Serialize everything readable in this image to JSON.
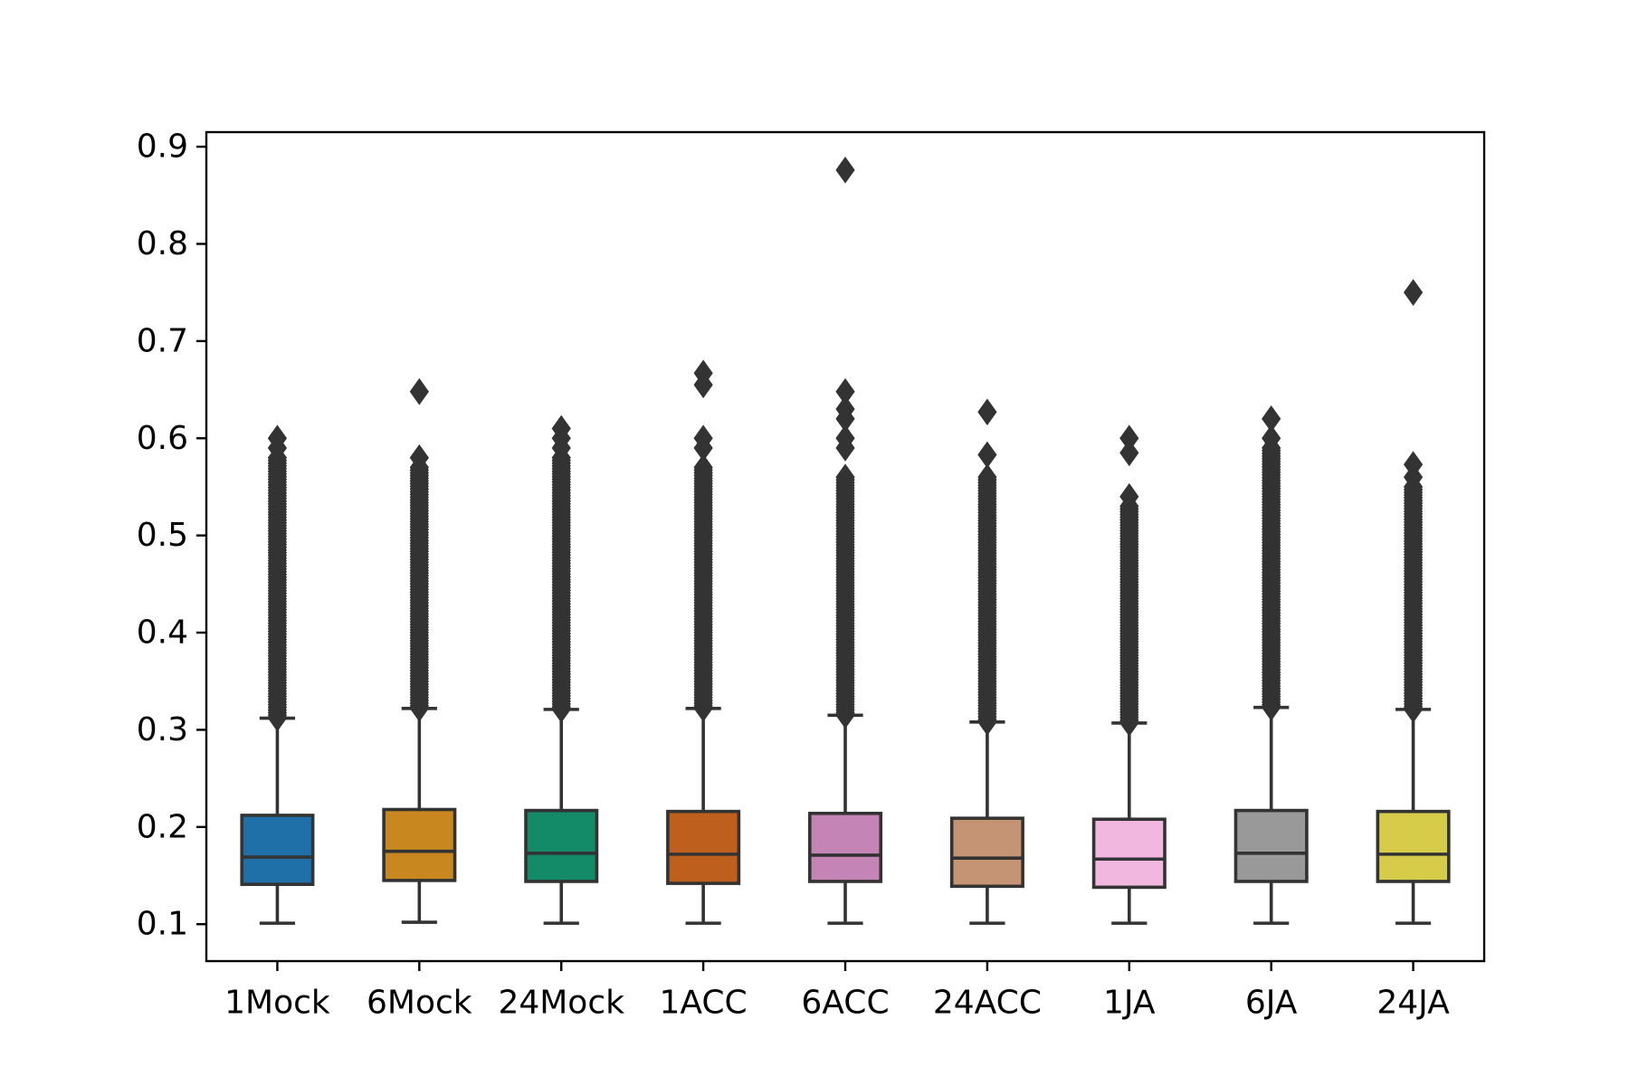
{
  "chart_data": {
    "type": "box",
    "title": "",
    "xlabel": "",
    "ylabel": "",
    "ylim": [
      0.062,
      0.915
    ],
    "yticks": [
      0.1,
      0.2,
      0.3,
      0.4,
      0.5,
      0.6,
      0.7,
      0.8,
      0.9
    ],
    "ytick_labels": [
      "0.1",
      "0.2",
      "0.3",
      "0.4",
      "0.5",
      "0.6",
      "0.7",
      "0.8",
      "0.9"
    ],
    "grid": false,
    "legend": "none",
    "categories": [
      "1Mock",
      "6Mock",
      "24Mock",
      "1ACC",
      "6ACC",
      "24ACC",
      "1JA",
      "6JA",
      "24JA"
    ],
    "colors": [
      "#1f6fa8",
      "#c8871f",
      "#138a68",
      "#be5f1e",
      "#c584b6",
      "#c49474",
      "#f2b7df",
      "#999999",
      "#d6cc4a"
    ],
    "edge_color": "#333333",
    "boxes": [
      {
        "label": "1Mock",
        "whislo": 0.101,
        "q1": 0.141,
        "med": 0.169,
        "q3": 0.212,
        "whishi": 0.312,
        "flier_range": [
          0.312,
          0.58
        ],
        "fliers_top": [
          0.59,
          0.6
        ]
      },
      {
        "label": "6Mock",
        "whislo": 0.102,
        "q1": 0.145,
        "med": 0.175,
        "q3": 0.218,
        "whishi": 0.322,
        "flier_range": [
          0.322,
          0.57
        ],
        "fliers_top": [
          0.58,
          0.648
        ]
      },
      {
        "label": "24Mock",
        "whislo": 0.101,
        "q1": 0.144,
        "med": 0.173,
        "q3": 0.217,
        "whishi": 0.321,
        "flier_range": [
          0.321,
          0.58
        ],
        "fliers_top": [
          0.59,
          0.6,
          0.61
        ]
      },
      {
        "label": "1ACC",
        "whislo": 0.101,
        "q1": 0.142,
        "med": 0.172,
        "q3": 0.216,
        "whishi": 0.322,
        "flier_range": [
          0.322,
          0.57
        ],
        "fliers_top": [
          0.59,
          0.6,
          0.655,
          0.667
        ]
      },
      {
        "label": "6ACC",
        "whislo": 0.101,
        "q1": 0.144,
        "med": 0.171,
        "q3": 0.214,
        "whishi": 0.315,
        "flier_range": [
          0.315,
          0.56
        ],
        "fliers_top": [
          0.59,
          0.6,
          0.62,
          0.63,
          0.648,
          0.876
        ]
      },
      {
        "label": "24ACC",
        "whislo": 0.101,
        "q1": 0.139,
        "med": 0.168,
        "q3": 0.209,
        "whishi": 0.308,
        "flier_range": [
          0.308,
          0.56
        ],
        "fliers_top": [
          0.583,
          0.627
        ]
      },
      {
        "label": "1JA",
        "whislo": 0.101,
        "q1": 0.138,
        "med": 0.167,
        "q3": 0.208,
        "whishi": 0.307,
        "flier_range": [
          0.307,
          0.53
        ],
        "fliers_top": [
          0.54,
          0.585,
          0.6
        ]
      },
      {
        "label": "6JA",
        "whislo": 0.101,
        "q1": 0.144,
        "med": 0.173,
        "q3": 0.217,
        "whishi": 0.323,
        "flier_range": [
          0.323,
          0.59
        ],
        "fliers_top": [
          0.6,
          0.62
        ]
      },
      {
        "label": "24JA",
        "whislo": 0.101,
        "q1": 0.144,
        "med": 0.172,
        "q3": 0.216,
        "whishi": 0.321,
        "flier_range": [
          0.321,
          0.55
        ],
        "fliers_top": [
          0.56,
          0.573,
          0.75
        ]
      }
    ]
  }
}
